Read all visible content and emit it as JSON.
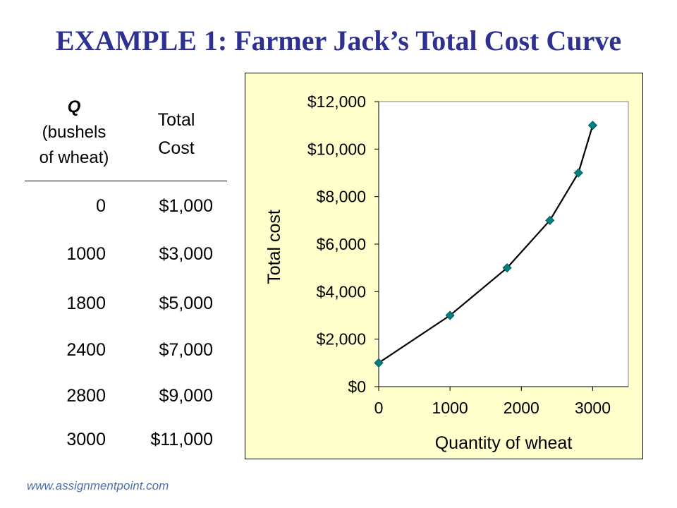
{
  "title": "EXAMPLE 1:  Farmer Jack’s Total Cost Curve",
  "table": {
    "q_header_symbol": "Q",
    "q_header_rest": [
      "(bushels",
      "of wheat)"
    ],
    "cost_header": [
      "Total",
      "Cost"
    ],
    "rows": [
      {
        "q": "0",
        "cost": "$1,000"
      },
      {
        "q": "1000",
        "cost": "$3,000"
      },
      {
        "q": "1800",
        "cost": "$5,000"
      },
      {
        "q": "2400",
        "cost": "$7,000"
      },
      {
        "q": "2800",
        "cost": "$9,000"
      },
      {
        "q": "3000",
        "cost": "$11,000"
      }
    ]
  },
  "chart_data": {
    "type": "line",
    "title": "",
    "xlabel": "Quantity of wheat",
    "ylabel": "Total cost",
    "x": [
      0,
      1000,
      1800,
      2400,
      2800,
      3000
    ],
    "series": [
      {
        "values": [
          1000,
          3000,
          5000,
          7000,
          9000,
          11000
        ]
      }
    ],
    "xlim": [
      0,
      3500
    ],
    "ylim": [
      0,
      12000
    ],
    "xticks": [
      0,
      1000,
      2000,
      3000
    ],
    "xtick_labels": [
      "0",
      "1000",
      "2000",
      "3000"
    ],
    "yticks": [
      0,
      2000,
      4000,
      6000,
      8000,
      10000,
      12000
    ],
    "ytick_labels": [
      "$0",
      "$2,000",
      "$4,000",
      "$6,000",
      "$8,000",
      "$10,000",
      "$12,000"
    ],
    "grid": false,
    "background": "#ffffcc",
    "plot_background": "#ffffff",
    "line_color": "#000000",
    "marker": "diamond",
    "marker_color": "#008080"
  },
  "footer": "www.assignmentpoint.com"
}
